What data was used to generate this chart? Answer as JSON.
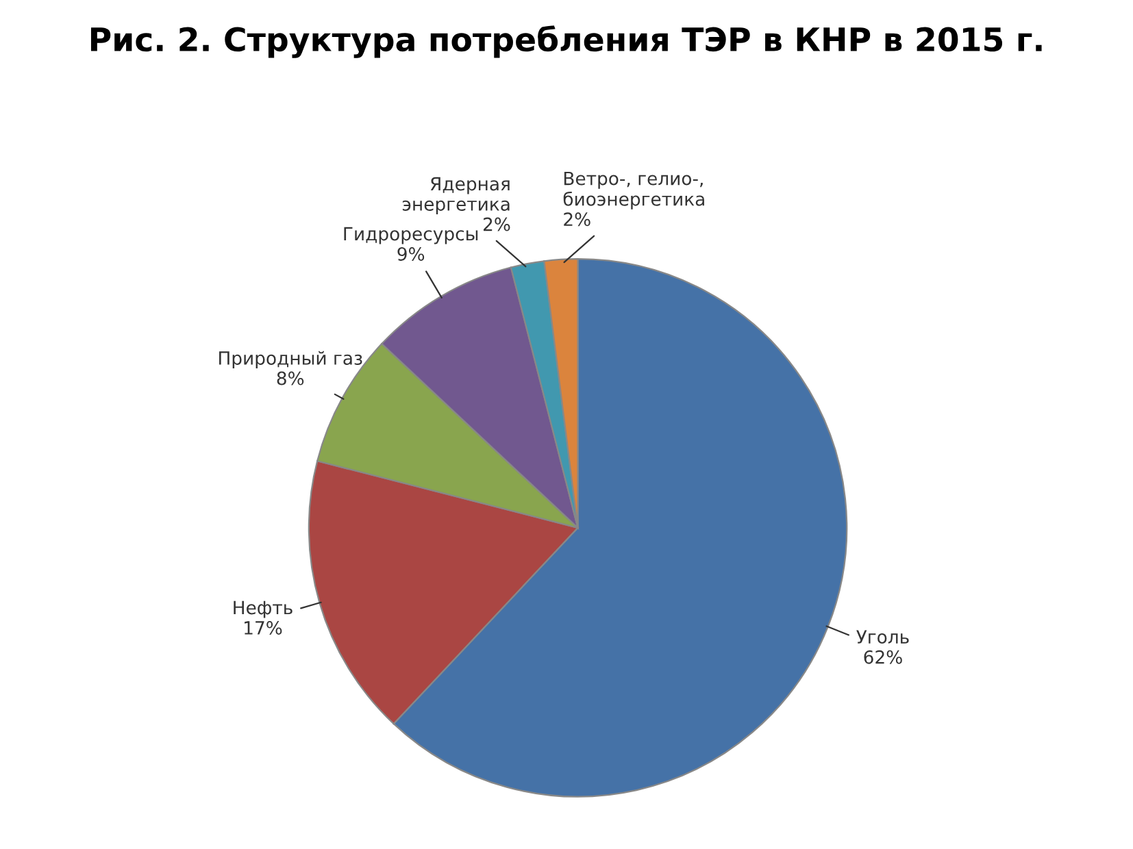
{
  "chart_data": {
    "type": "pie",
    "title": "Рис. 2. Структура потребления ТЭР в КНР в 2015 г.",
    "categories": [
      "Уголь",
      "Нефть",
      "Природный газ",
      "Гидроресурсы",
      "Ядерная\nэнергетика",
      "Ветро-, гелио-,\nбиоэнергетика"
    ],
    "values": [
      62,
      17,
      8,
      9,
      2,
      2
    ],
    "value_labels": [
      "62%",
      "17%",
      "8%",
      "9%",
      "2%",
      "2%"
    ],
    "colors": [
      "#4572a7",
      "#aa4643",
      "#89a54e",
      "#71588f",
      "#4198af",
      "#db843d"
    ],
    "legend": false
  }
}
